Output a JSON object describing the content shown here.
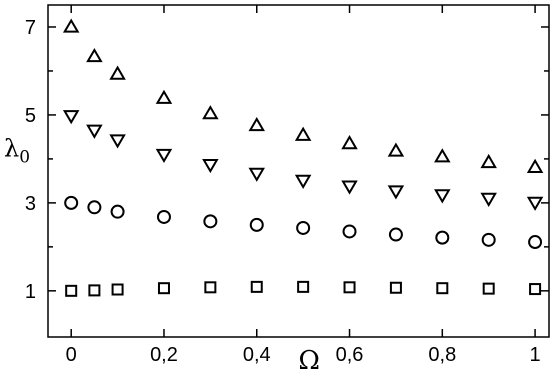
{
  "chart_data": {
    "type": "scatter",
    "title": "",
    "xlabel": "Ω",
    "ylabel": "λ",
    "ylabel_subscript": "0",
    "xlim": [
      -0.05,
      1.03
    ],
    "ylim": [
      -0.05,
      7.5
    ],
    "xticks": [
      0,
      0.2,
      0.4,
      0.6,
      0.8,
      1
    ],
    "xtick_labels": [
      "0",
      "0,2",
      "0,4",
      "0,6",
      "0,8",
      "1"
    ],
    "yticks": [
      1,
      3,
      5,
      7
    ],
    "ytick_labels": [
      "1",
      "3",
      "5",
      "7"
    ],
    "grid": false,
    "x": [
      0,
      0.05,
      0.1,
      0.2,
      0.3,
      0.4,
      0.5,
      0.6,
      0.7,
      0.8,
      0.9,
      1.0
    ],
    "series": [
      {
        "marker": "triangle-up",
        "values": [
          7.0,
          6.33,
          5.93,
          5.38,
          5.03,
          4.76,
          4.54,
          4.35,
          4.18,
          4.05,
          3.92,
          3.81
        ]
      },
      {
        "marker": "triangle-down",
        "values": [
          4.98,
          4.65,
          4.43,
          4.1,
          3.87,
          3.67,
          3.51,
          3.38,
          3.27,
          3.18,
          3.1,
          3.01
        ]
      },
      {
        "marker": "circle",
        "values": [
          3.0,
          2.9,
          2.8,
          2.68,
          2.58,
          2.5,
          2.43,
          2.35,
          2.28,
          2.21,
          2.16,
          2.11
        ]
      },
      {
        "marker": "square",
        "values": [
          1.0,
          1.01,
          1.03,
          1.06,
          1.08,
          1.09,
          1.09,
          1.08,
          1.07,
          1.06,
          1.05,
          1.04
        ]
      }
    ]
  }
}
